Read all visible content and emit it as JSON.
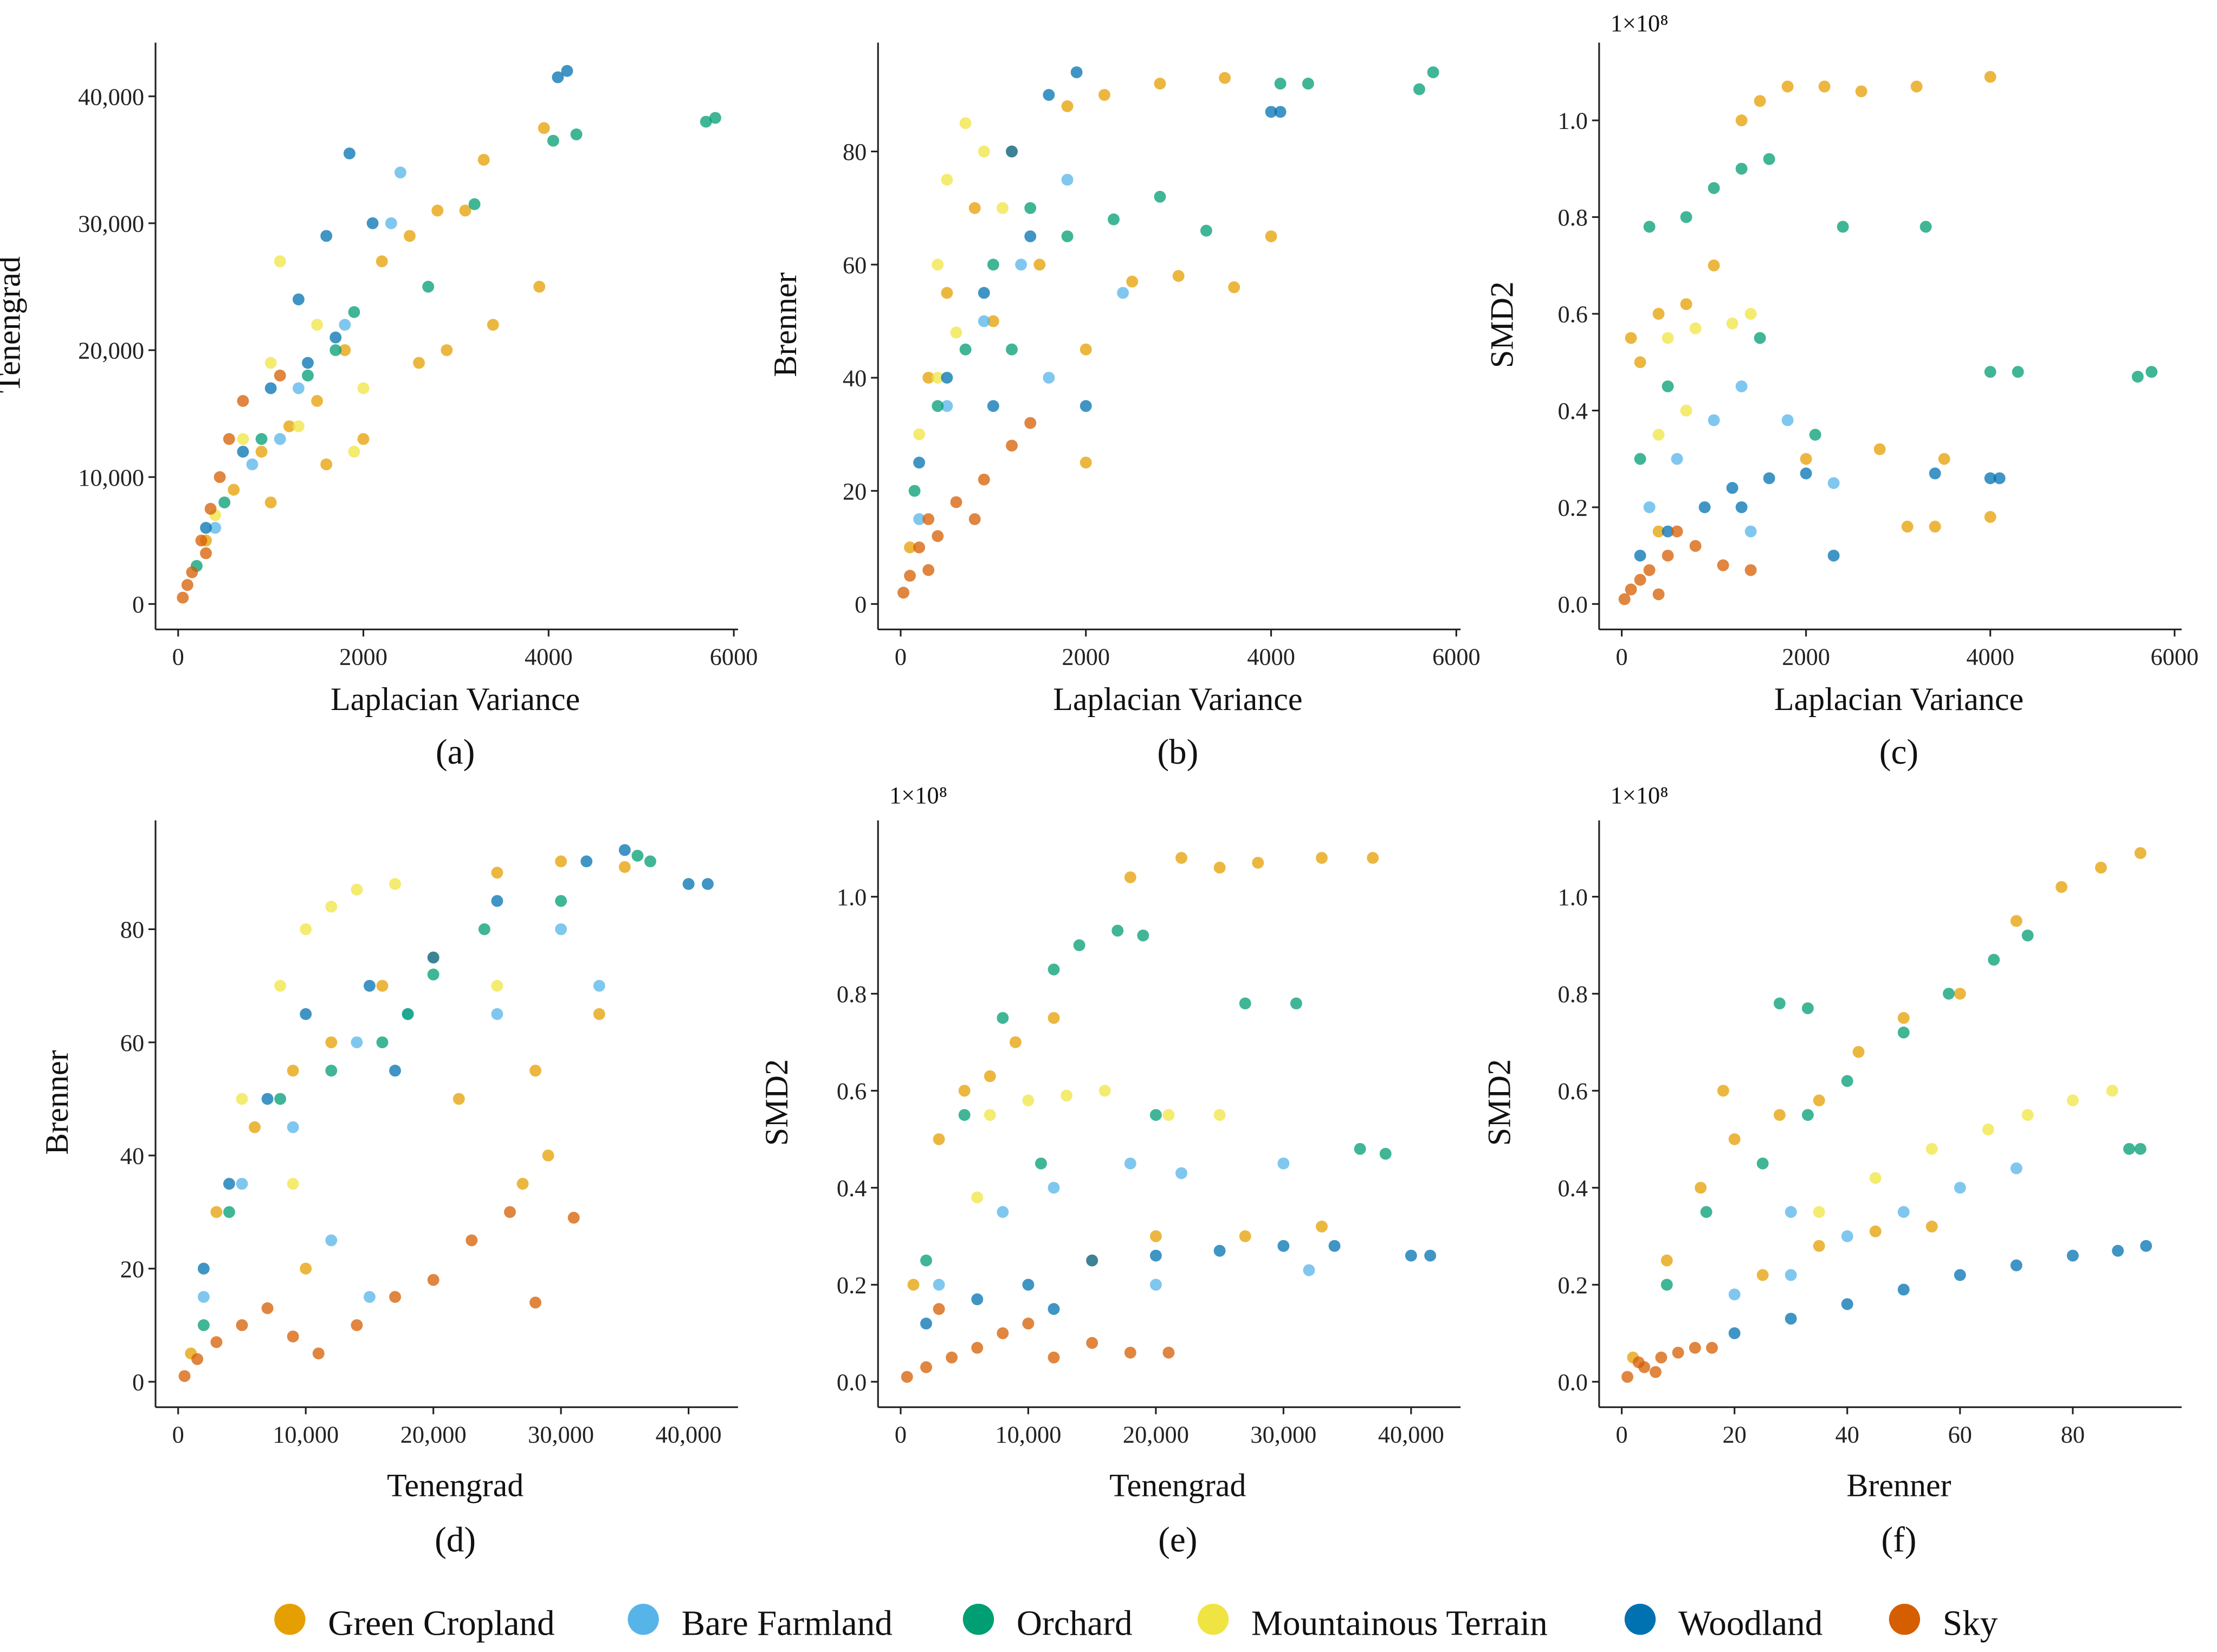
{
  "chart_data": {
    "type": "scatter",
    "legend": {
      "placement": "bottom",
      "entries": [
        {
          "name": "Green Cropland",
          "color": "#E69F00"
        },
        {
          "name": "Bare Farmland",
          "color": "#56B4E9"
        },
        {
          "name": "Orchard",
          "color": "#009E73"
        },
        {
          "name": "Mountainous Terrain",
          "color": "#F0E442"
        },
        {
          "name": "Woodland",
          "color": "#0072B2"
        },
        {
          "name": "Sky",
          "color": "#D55E00"
        }
      ]
    },
    "panels": [
      {
        "letter": "(a)",
        "xlabel": "Laplacian Variance",
        "ylabel": "Tenengrad",
        "multiplier": "",
        "xlim": [
          0,
          6000
        ],
        "ylim": [
          0,
          40000
        ],
        "xticks": [
          0,
          2000,
          4000,
          6000
        ],
        "xtick_labels": [
          "0",
          "2000",
          "4000",
          "6000"
        ],
        "yticks": [
          0,
          10000,
          20000,
          30000,
          40000
        ],
        "ytick_labels": [
          "0",
          "10,000",
          "20,000",
          "30,000",
          "40,000"
        ],
        "series": [
          [
            300,
            5000,
            600,
            9000,
            900,
            12000,
            1200,
            14000,
            1500,
            16000,
            1800,
            20000,
            2200,
            27000,
            2500,
            29000,
            2800,
            31000,
            3100,
            31000,
            3400,
            22000,
            2600,
            19000,
            2000,
            13000,
            3900,
            25000,
            3950,
            37500,
            1000,
            8000,
            1600,
            11000,
            2900,
            20000,
            3300,
            35000
          ],
          [
            400,
            6000,
            800,
            11000,
            1300,
            17000,
            1800,
            22000,
            2300,
            30000,
            2400,
            34000,
            1100,
            13000
          ],
          [
            200,
            3000,
            500,
            8000,
            900,
            13000,
            1400,
            18000,
            1900,
            23000,
            2700,
            25000,
            3200,
            31500,
            4050,
            36500,
            4300,
            37000,
            5700,
            38000,
            5800,
            38300,
            1700,
            20000
          ],
          [
            400,
            7000,
            700,
            13000,
            1000,
            19000,
            1100,
            27000,
            1300,
            14000,
            1500,
            22000,
            2000,
            17000,
            1900,
            12000
          ],
          [
            300,
            6000,
            700,
            12000,
            1000,
            17000,
            1300,
            24000,
            1600,
            29000,
            1850,
            35500,
            2100,
            30000,
            1700,
            21000,
            4100,
            41500,
            4200,
            42000,
            1400,
            19000
          ],
          [
            50,
            500,
            150,
            2500,
            250,
            5000,
            350,
            7500,
            450,
            10000,
            550,
            13000,
            700,
            16000,
            100,
            1500,
            300,
            4000,
            1100,
            18000
          ]
        ]
      },
      {
        "letter": "(b)",
        "xlabel": "Laplacian Variance",
        "ylabel": "Brenner",
        "multiplier": "",
        "xlim": [
          0,
          6000
        ],
        "ylim": [
          0,
          80
        ],
        "xticks": [
          0,
          2000,
          4000,
          6000
        ],
        "xtick_labels": [
          "0",
          "2000",
          "4000",
          "6000"
        ],
        "yticks": [
          0,
          20,
          40,
          60,
          80
        ],
        "ytick_labels": [
          "0",
          "20",
          "40",
          "60",
          "80"
        ],
        "series": [
          [
            100,
            10,
            300,
            40,
            500,
            55,
            800,
            70,
            1200,
            80,
            1800,
            88,
            2200,
            90,
            2800,
            92,
            3500,
            93,
            2500,
            57,
            3000,
            58,
            3600,
            56,
            4000,
            65,
            2000,
            45,
            1000,
            50,
            1500,
            60,
            2000,
            25
          ],
          [
            200,
            15,
            500,
            35,
            900,
            50,
            1300,
            60,
            1800,
            75,
            1600,
            40,
            2400,
            55
          ],
          [
            150,
            20,
            400,
            35,
            700,
            45,
            1000,
            60,
            1400,
            70,
            1800,
            65,
            2300,
            68,
            2800,
            72,
            3300,
            66,
            4100,
            92,
            4400,
            92,
            5600,
            91,
            5750,
            94,
            1200,
            45
          ],
          [
            200,
            30,
            400,
            60,
            500,
            75,
            700,
            85,
            900,
            80,
            600,
            48,
            1100,
            70,
            400,
            40
          ],
          [
            200,
            25,
            500,
            40,
            900,
            55,
            1200,
            80,
            1600,
            90,
            1900,
            94,
            1000,
            35,
            1400,
            65,
            4000,
            87,
            4100,
            87,
            2000,
            35
          ],
          [
            30,
            2,
            100,
            5,
            200,
            10,
            300,
            15,
            400,
            12,
            600,
            18,
            900,
            22,
            1200,
            28,
            1400,
            32,
            300,
            6,
            800,
            15
          ]
        ]
      },
      {
        "letter": "(c)",
        "xlabel": "Laplacian Variance",
        "ylabel": "SMD2",
        "multiplier": "1×10⁸",
        "xlim": [
          0,
          6000
        ],
        "ylim": [
          0,
          1.0
        ],
        "xticks": [
          0,
          2000,
          4000,
          6000
        ],
        "xtick_labels": [
          "0",
          "2000",
          "4000",
          "6000"
        ],
        "yticks": [
          0,
          0.2,
          0.4,
          0.6,
          0.8,
          1.0
        ],
        "ytick_labels": [
          "0.0",
          "0.2",
          "0.4",
          "0.6",
          "0.8",
          "1.0"
        ],
        "series": [
          [
            100,
            0.55,
            200,
            0.5,
            400,
            0.6,
            700,
            0.62,
            1000,
            0.7,
            1300,
            1.0,
            1500,
            1.04,
            1800,
            1.07,
            2200,
            1.07,
            2600,
            1.06,
            3200,
            1.07,
            4000,
            1.09,
            2000,
            0.3,
            2800,
            0.32,
            3500,
            0.3,
            3100,
            0.16,
            3400,
            0.16,
            4000,
            0.18,
            400,
            0.15
          ],
          [
            300,
            0.2,
            600,
            0.3,
            1000,
            0.38,
            1300,
            0.45,
            1800,
            0.38,
            2300,
            0.25,
            1400,
            0.15
          ],
          [
            200,
            0.3,
            300,
            0.78,
            700,
            0.8,
            1000,
            0.86,
            1300,
            0.9,
            1600,
            0.92,
            2400,
            0.78,
            3300,
            0.78,
            1500,
            0.55,
            2100,
            0.35,
            4000,
            0.48,
            4300,
            0.48,
            5600,
            0.47,
            5750,
            0.48,
            500,
            0.45
          ],
          [
            500,
            0.55,
            800,
            0.57,
            1200,
            0.58,
            1400,
            0.6,
            700,
            0.4,
            400,
            0.35
          ],
          [
            200,
            0.1,
            500,
            0.15,
            900,
            0.2,
            1200,
            0.24,
            1600,
            0.26,
            2000,
            0.27,
            2300,
            0.1,
            3400,
            0.27,
            4000,
            0.26,
            4100,
            0.26,
            1300,
            0.2
          ],
          [
            30,
            0.01,
            100,
            0.03,
            200,
            0.05,
            300,
            0.07,
            500,
            0.1,
            800,
            0.12,
            1100,
            0.08,
            1400,
            0.07,
            400,
            0.02,
            600,
            0.15
          ]
        ]
      },
      {
        "letter": "(d)",
        "xlabel": "Tenengrad",
        "ylabel": "Brenner",
        "multiplier": "",
        "xlim": [
          0,
          40000
        ],
        "ylim": [
          0,
          80
        ],
        "xticks": [
          0,
          10000,
          20000,
          30000,
          40000
        ],
        "xtick_labels": [
          "0",
          "10,000",
          "20,000",
          "30,000",
          "40,000"
        ],
        "yticks": [
          0,
          20,
          40,
          60,
          80
        ],
        "ytick_labels": [
          "0",
          "20",
          "40",
          "60",
          "80"
        ],
        "series": [
          [
            1000,
            5,
            3000,
            30,
            6000,
            45,
            9000,
            55,
            12000,
            60,
            16000,
            70,
            20000,
            75,
            25000,
            90,
            30000,
            92,
            35000,
            91,
            22000,
            50,
            28000,
            55,
            33000,
            65,
            27000,
            35,
            29000,
            40,
            10000,
            20
          ],
          [
            2000,
            15,
            5000,
            35,
            9000,
            45,
            14000,
            60,
            18000,
            65,
            25000,
            65,
            30000,
            80,
            33000,
            70,
            15000,
            15,
            12000,
            25
          ],
          [
            2000,
            10,
            4000,
            30,
            8000,
            50,
            12000,
            55,
            16000,
            60,
            20000,
            72,
            24000,
            80,
            30000,
            85,
            36000,
            93,
            37000,
            92,
            18000,
            65
          ],
          [
            5000,
            50,
            8000,
            70,
            10000,
            80,
            12000,
            84,
            14000,
            87,
            17000,
            88,
            9000,
            35,
            25000,
            70
          ],
          [
            2000,
            20,
            4000,
            35,
            7000,
            50,
            10000,
            65,
            15000,
            70,
            20000,
            75,
            25000,
            85,
            32000,
            92,
            35000,
            94,
            40000,
            88,
            41500,
            88,
            17000,
            55
          ],
          [
            500,
            1,
            1500,
            4,
            3000,
            7,
            5000,
            10,
            7000,
            13,
            9000,
            8,
            11000,
            5,
            14000,
            10,
            17000,
            15,
            20000,
            18,
            23000,
            25,
            26000,
            30,
            28000,
            14,
            31000,
            29
          ]
        ]
      },
      {
        "letter": "(e)",
        "xlabel": "Tenengrad",
        "ylabel": "SMD2",
        "multiplier": "1×10⁸",
        "xlim": [
          0,
          40000
        ],
        "ylim": [
          0,
          1.0
        ],
        "xticks": [
          0,
          10000,
          20000,
          30000,
          40000
        ],
        "xtick_labels": [
          "0",
          "10,000",
          "20,000",
          "30,000",
          "40,000"
        ],
        "yticks": [
          0,
          0.2,
          0.4,
          0.6,
          0.8,
          1.0
        ],
        "ytick_labels": [
          "0.0",
          "0.2",
          "0.4",
          "0.6",
          "0.8",
          "1.0"
        ],
        "series": [
          [
            1000,
            0.2,
            3000,
            0.5,
            5000,
            0.6,
            7000,
            0.63,
            9000,
            0.7,
            12000,
            0.75,
            18000,
            1.04,
            22000,
            1.08,
            25000,
            1.06,
            28000,
            1.07,
            33000,
            1.08,
            37000,
            1.08,
            20000,
            0.3,
            27000,
            0.3,
            33000,
            0.32,
            15000,
            0.25
          ],
          [
            3000,
            0.2,
            8000,
            0.35,
            12000,
            0.4,
            18000,
            0.45,
            22000,
            0.43,
            30000,
            0.45,
            32000,
            0.23,
            20000,
            0.2
          ],
          [
            2000,
            0.25,
            5000,
            0.55,
            8000,
            0.75,
            12000,
            0.85,
            14000,
            0.9,
            17000,
            0.93,
            19000,
            0.92,
            27000,
            0.78,
            31000,
            0.78,
            20000,
            0.55,
            36000,
            0.48,
            38000,
            0.47,
            11000,
            0.45
          ],
          [
            7000,
            0.55,
            10000,
            0.58,
            13000,
            0.59,
            16000,
            0.6,
            21000,
            0.55,
            25000,
            0.55,
            6000,
            0.38
          ],
          [
            2000,
            0.12,
            6000,
            0.17,
            10000,
            0.2,
            15000,
            0.25,
            20000,
            0.26,
            25000,
            0.27,
            30000,
            0.28,
            34000,
            0.28,
            40000,
            0.26,
            41500,
            0.26,
            12000,
            0.15
          ],
          [
            500,
            0.01,
            2000,
            0.03,
            4000,
            0.05,
            6000,
            0.07,
            8000,
            0.1,
            10000,
            0.12,
            12000,
            0.05,
            15000,
            0.08,
            18000,
            0.06,
            21000,
            0.06,
            3000,
            0.15
          ]
        ]
      },
      {
        "letter": "(f)",
        "xlabel": "Brenner",
        "ylabel": "SMD2",
        "multiplier": "1×10⁸",
        "xlim": [
          0,
          80
        ],
        "ylim": [
          0,
          1.0
        ],
        "xticks": [
          0,
          20,
          40,
          60,
          80
        ],
        "xtick_labels": [
          "0",
          "20",
          "40",
          "60",
          "80"
        ],
        "yticks": [
          0,
          0.2,
          0.4,
          0.6,
          0.8,
          1.0
        ],
        "ytick_labels": [
          "0.0",
          "0.2",
          "0.4",
          "0.6",
          "0.8",
          "1.0"
        ],
        "series": [
          [
            2,
            0.05,
            8,
            0.25,
            14,
            0.4,
            20,
            0.5,
            28,
            0.55,
            35,
            0.58,
            42,
            0.68,
            50,
            0.75,
            60,
            0.8,
            70,
            0.95,
            78,
            1.02,
            85,
            1.06,
            92,
            1.09,
            25,
            0.22,
            35,
            0.28,
            45,
            0.31,
            55,
            0.32,
            18,
            0.6
          ],
          [
            20,
            0.18,
            30,
            0.22,
            40,
            0.3,
            50,
            0.35,
            60,
            0.4,
            70,
            0.44,
            30,
            0.35
          ],
          [
            8,
            0.2,
            15,
            0.35,
            25,
            0.45,
            33,
            0.55,
            40,
            0.62,
            50,
            0.72,
            58,
            0.8,
            66,
            0.87,
            72,
            0.92,
            90,
            0.48,
            92,
            0.48,
            28,
            0.78,
            33,
            0.77
          ],
          [
            35,
            0.35,
            45,
            0.42,
            55,
            0.48,
            65,
            0.52,
            72,
            0.55,
            80,
            0.58,
            87,
            0.6
          ],
          [
            20,
            0.1,
            30,
            0.13,
            40,
            0.16,
            50,
            0.19,
            60,
            0.22,
            70,
            0.24,
            80,
            0.26,
            88,
            0.27,
            93,
            0.28
          ],
          [
            1,
            0.01,
            4,
            0.03,
            7,
            0.05,
            10,
            0.06,
            13,
            0.07,
            16,
            0.07,
            3,
            0.04,
            6,
            0.02
          ]
        ]
      }
    ]
  }
}
